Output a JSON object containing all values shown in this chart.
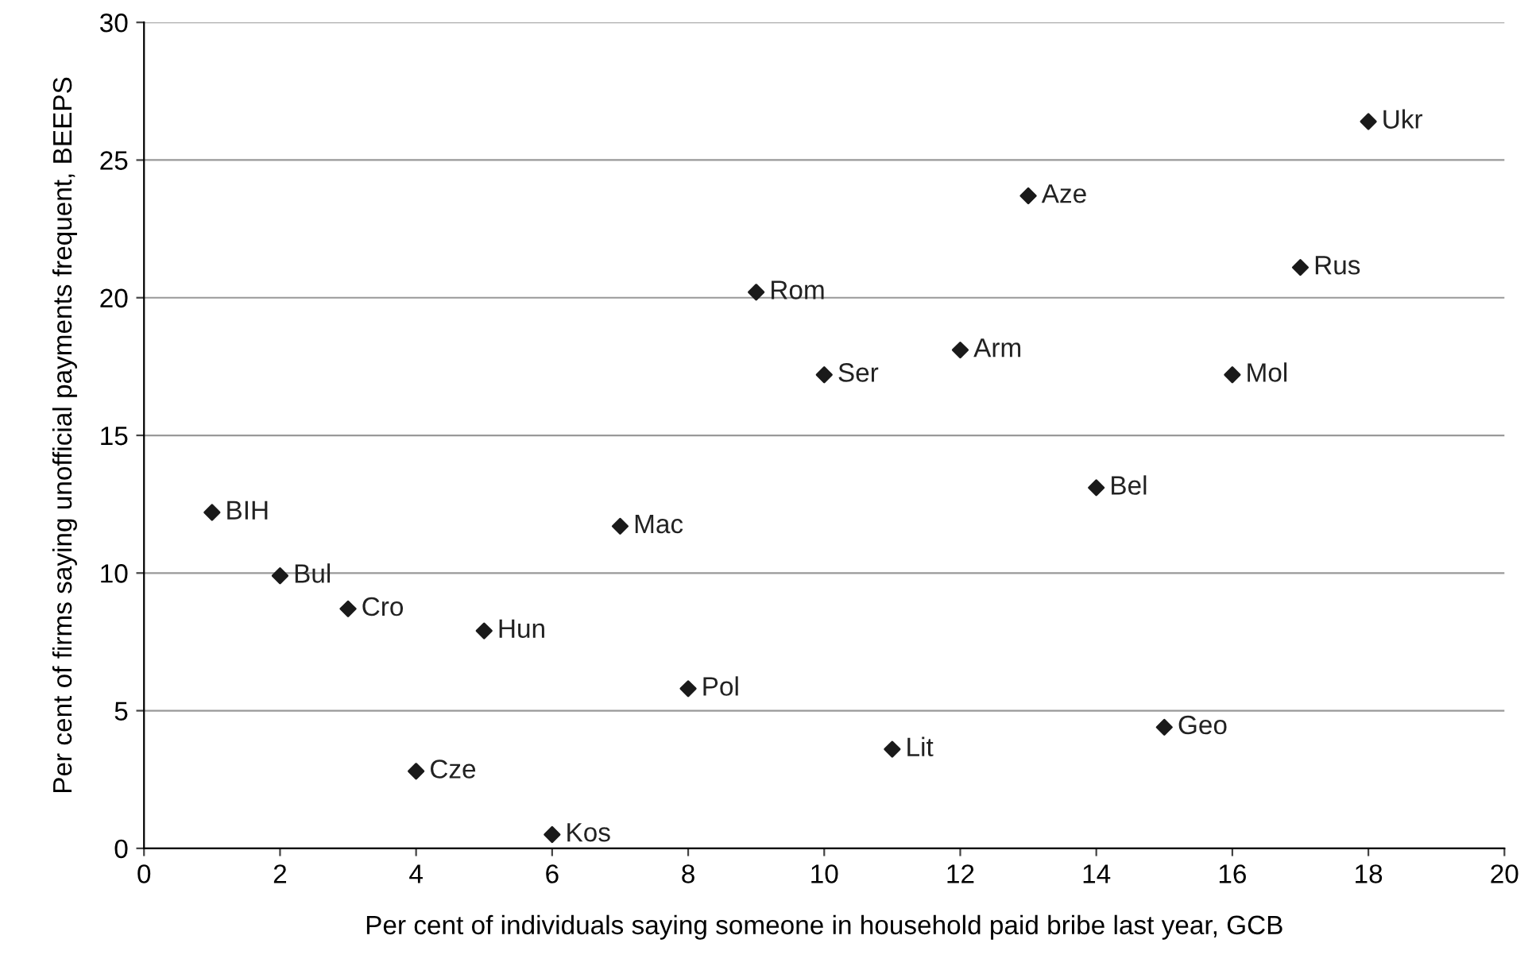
{
  "chart_data": {
    "type": "scatter",
    "xlabel": "Per cent of individuals saying someone in household paid bribe last year, GCB",
    "ylabel": "Per cent of firms saying unofficial payments frequent, BEEPS",
    "x": [
      1,
      2,
      3,
      4,
      5,
      6,
      7,
      8,
      9,
      10,
      11,
      12,
      13,
      14,
      15,
      16,
      17,
      18
    ],
    "series": [
      {
        "color": "#1a1a1a",
        "values": [
          12.2,
          9.9,
          8.7,
          2.8,
          7.9,
          0.5,
          11.7,
          5.8,
          20.2,
          17.2,
          3.6,
          18.1,
          23.7,
          13.1,
          4.4,
          17.2,
          21.1,
          26.4
        ]
      }
    ],
    "annotations": [
      {
        "text": "BIH",
        "x": 1,
        "y": 12.2
      },
      {
        "text": "Bul",
        "x": 2,
        "y": 9.9
      },
      {
        "text": "Cro",
        "x": 3,
        "y": 8.7
      },
      {
        "text": "Cze",
        "x": 4,
        "y": 2.8
      },
      {
        "text": "Hun",
        "x": 5,
        "y": 7.9
      },
      {
        "text": "Kos",
        "x": 6,
        "y": 0.5
      },
      {
        "text": "Mac",
        "x": 7,
        "y": 11.7
      },
      {
        "text": "Pol",
        "x": 8,
        "y": 5.8
      },
      {
        "text": "Rom",
        "x": 9,
        "y": 20.2
      },
      {
        "text": "Ser",
        "x": 10,
        "y": 17.2
      },
      {
        "text": "Lit",
        "x": 11,
        "y": 3.6
      },
      {
        "text": "Arm",
        "x": 12,
        "y": 18.1
      },
      {
        "text": "Aze",
        "x": 13,
        "y": 23.7
      },
      {
        "text": "Bel",
        "x": 14,
        "y": 13.1
      },
      {
        "text": "Geo",
        "x": 15,
        "y": 4.4
      },
      {
        "text": "Mol",
        "x": 16,
        "y": 17.2
      },
      {
        "text": "Rus",
        "x": 17,
        "y": 21.1
      },
      {
        "text": "Ukr",
        "x": 18,
        "y": 26.4
      }
    ],
    "xlim": [
      0,
      20
    ],
    "xticks": [
      0,
      2,
      4,
      6,
      8,
      10,
      12,
      14,
      16,
      18,
      20
    ],
    "ylim": [
      0,
      30
    ],
    "yticks": [
      0,
      5,
      10,
      15,
      20,
      25,
      30
    ],
    "grid": "y",
    "marker": "diamond",
    "legend": false
  }
}
